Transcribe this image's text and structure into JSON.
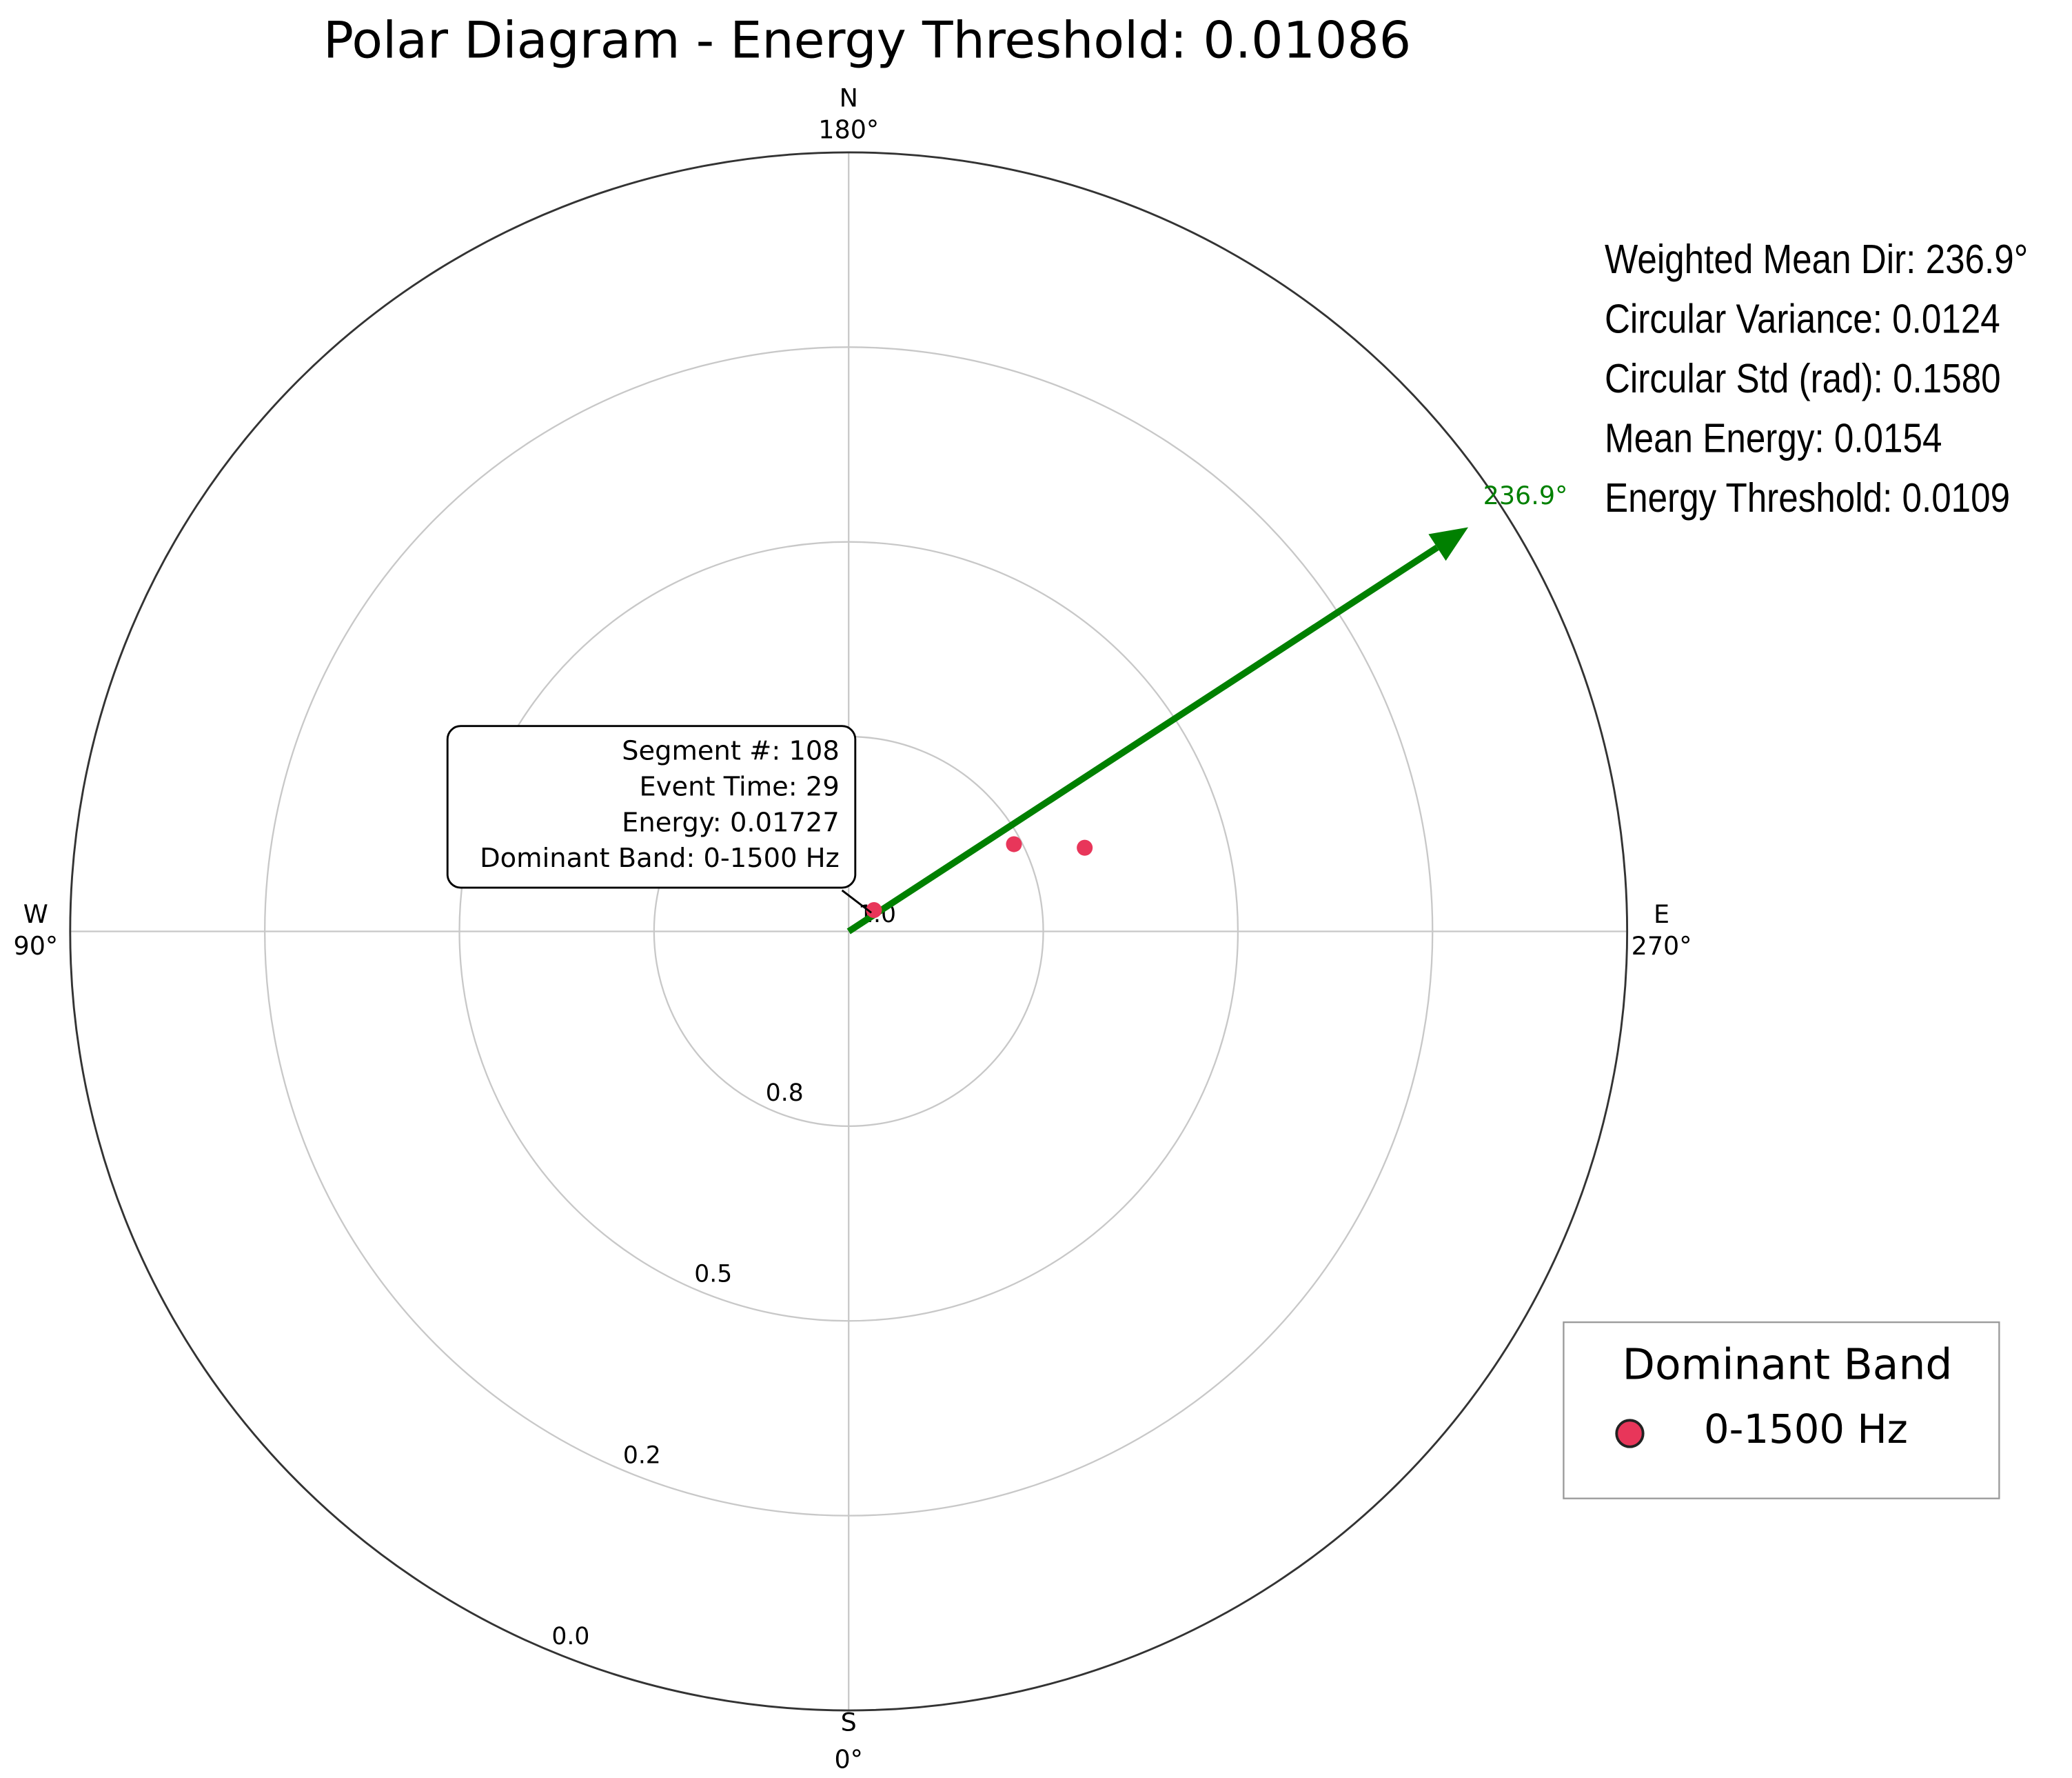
{
  "chart_data": {
    "type": "polar",
    "title": "Polar Diagram - Energy Threshold: 0.01086",
    "theta_zero": "S",
    "theta_direction": "clockwise",
    "xticks": [
      {
        "value": 0,
        "label": "0°"
      },
      {
        "value": 90,
        "label": "90°"
      },
      {
        "value": 180,
        "label": "180°"
      },
      {
        "value": 270,
        "label": "270°"
      }
    ],
    "directions": [
      "S",
      "W",
      "N",
      "E"
    ],
    "rlim": [
      1.0,
      0.0
    ],
    "rticks": [
      {
        "value": 1.0,
        "label": "1.0"
      },
      0.8,
      0.5,
      0.2,
      {
        "value": 0.0,
        "label": "0.0"
      }
    ],
    "grid": true,
    "series": [
      {
        "name": "0-1500 Hz",
        "color": "#e8365a",
        "theta": [
          229.9,
          242.2,
          250.5
        ],
        "values": [
          0.966,
          0.808,
          0.714
        ]
      }
    ],
    "arrow": {
      "theta": 236.9,
      "r": 0.04,
      "label": "236.9°",
      "color": "#008000"
    },
    "annotation": {
      "lines": [
        "Segment #: 108",
        "Event Time: 29",
        "Energy: 0.01727",
        "Dominant Band: 0-1500 Hz"
      ],
      "point": 0
    },
    "stats": [
      "Weighted Mean Dir: 236.9°",
      "Circular Variance: 0.0124",
      "Circular Std (rad): 0.1580",
      "Mean Energy: 0.0154",
      "Energy Threshold: 0.0109"
    ],
    "legend": {
      "title": "Dominant Band",
      "position": "lower right"
    }
  }
}
